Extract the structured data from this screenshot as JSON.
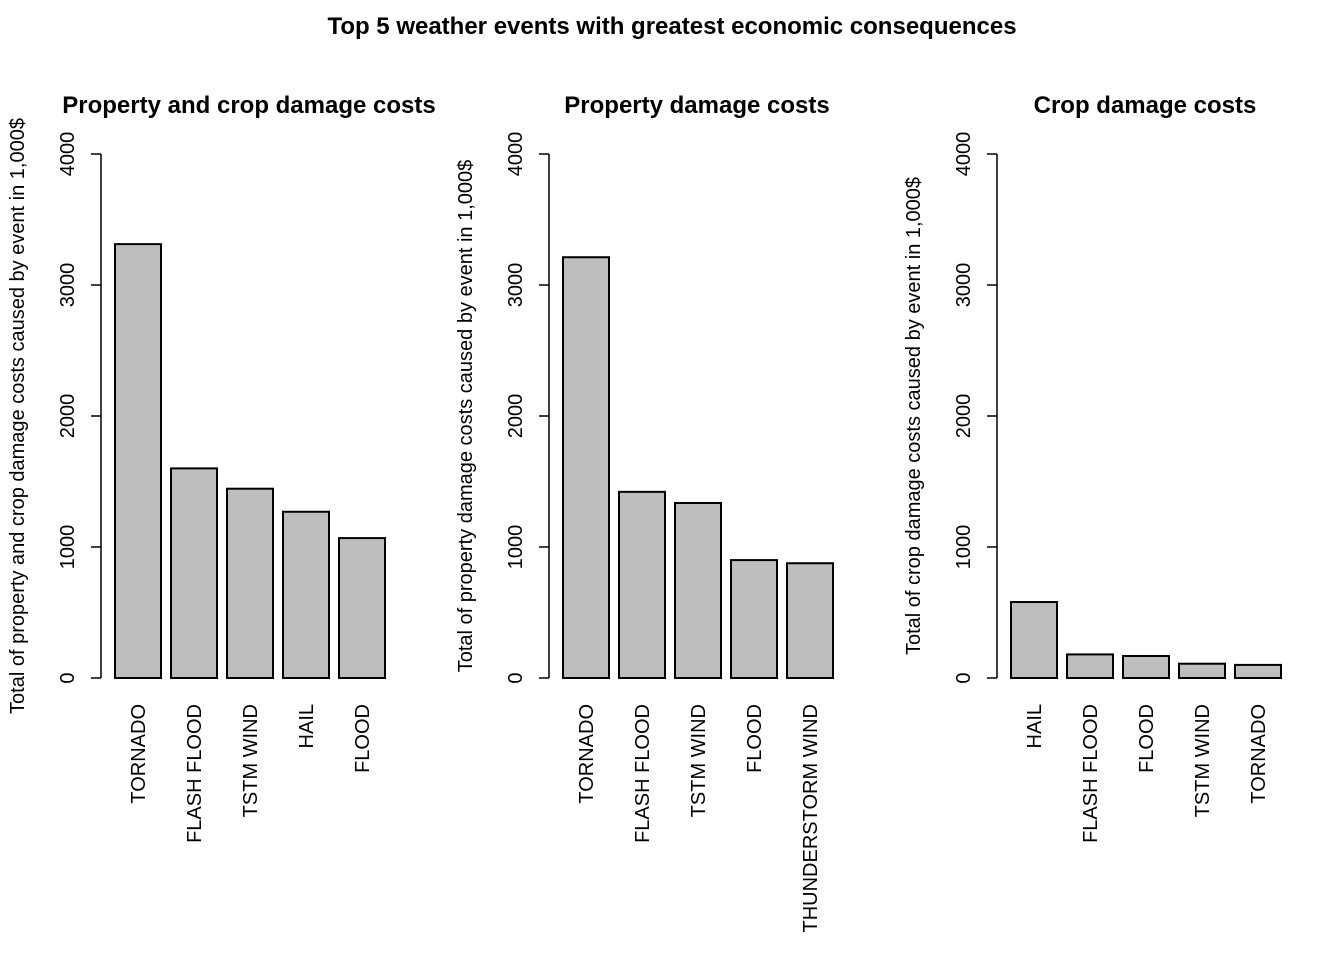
{
  "main_title": "Top 5 weather events with greatest economic consequences",
  "chart_data": [
    {
      "type": "bar",
      "title": "Property and crop damage costs",
      "ylabel": "Total of property and crop damage costs caused by event in 1,000$",
      "xlabel": "",
      "categories": [
        "TORNADO",
        "FLASH FLOOD",
        "TSTM WIND",
        "HAIL",
        "FLOOD"
      ],
      "values": [
        3312,
        1600,
        1445,
        1269,
        1068
      ],
      "ylim": [
        0,
        4000
      ],
      "yticks": [
        0,
        1000,
        2000,
        3000,
        4000
      ],
      "bar_color": "#bebebe",
      "grid": false
    },
    {
      "type": "bar",
      "title": "Property damage costs",
      "ylabel": "Total of property damage costs caused by event in 1,000$",
      "xlabel": "",
      "categories": [
        "TORNADO",
        "FLASH FLOOD",
        "TSTM WIND",
        "FLOOD",
        "THUNDERSTORM WIND"
      ],
      "values": [
        3212,
        1421,
        1336,
        900,
        876
      ],
      "ylim": [
        0,
        4000
      ],
      "yticks": [
        0,
        1000,
        2000,
        3000,
        4000
      ],
      "bar_color": "#bebebe",
      "grid": false
    },
    {
      "type": "bar",
      "title": "Crop damage costs",
      "ylabel": "Total of crop damage costs caused by event in 1,000$",
      "xlabel": "",
      "categories": [
        "HAIL",
        "FLASH FLOOD",
        "FLOOD",
        "TSTM WIND",
        "TORNADO"
      ],
      "values": [
        580,
        180,
        168,
        109,
        100
      ],
      "ylim": [
        0,
        4000
      ],
      "yticks": [
        0,
        1000,
        2000,
        3000,
        4000
      ],
      "bar_color": "#bebebe",
      "grid": false
    }
  ]
}
